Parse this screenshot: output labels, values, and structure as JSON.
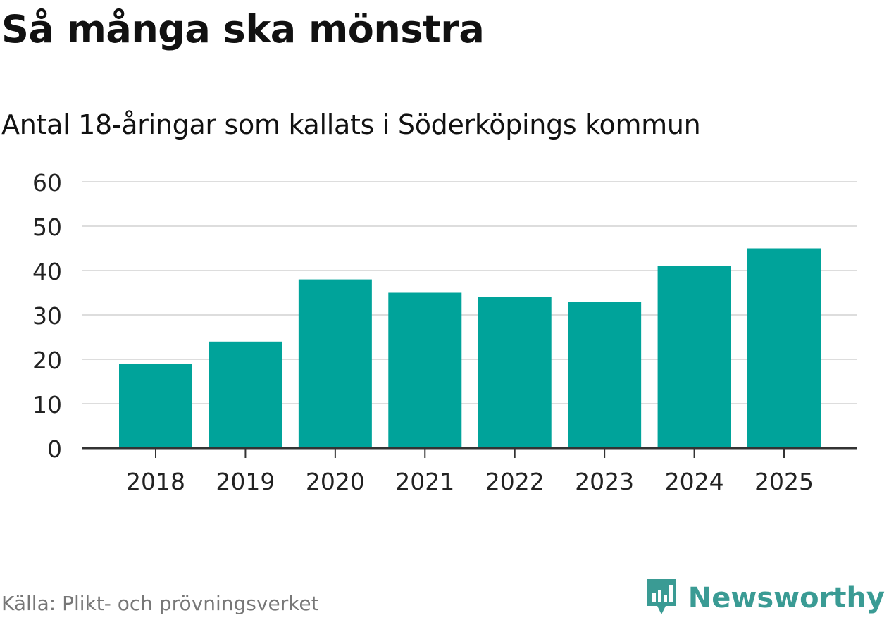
{
  "title": "Så många ska mönstra",
  "subtitle": "Antal 18-åringar som kallats i Söderköpings kommun",
  "source": "Källa: Plikt- och prövningsverket",
  "brand": {
    "name": "Newsworthy",
    "icon": "newsworthy-logo-icon",
    "color": "#3a9b94"
  },
  "colors": {
    "bar": "#00a39a",
    "grid": "#dddddd",
    "axis": "#333333"
  },
  "chart_data": {
    "type": "bar",
    "categories": [
      "2018",
      "2019",
      "2020",
      "2021",
      "2022",
      "2023",
      "2024",
      "2025"
    ],
    "values": [
      19,
      24,
      38,
      35,
      34,
      33,
      41,
      45
    ],
    "yticks": [
      0,
      10,
      20,
      30,
      40,
      50,
      60
    ],
    "ylim": [
      0,
      60
    ],
    "xlabel": "",
    "ylabel": "",
    "grid": true
  }
}
